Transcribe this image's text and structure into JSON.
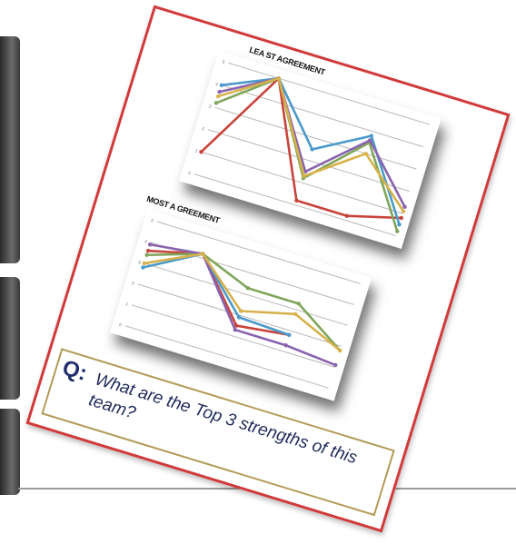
{
  "charts": [
    {
      "title": "LEA ST AGREEMENT",
      "series_colors": [
        "#c8433b",
        "#4a9acb",
        "#7fa65a",
        "#8a63b0",
        "#d7b24a"
      ],
      "series": [
        {
          "name": "",
          "values": [
            1,
            5,
            0.2,
            0.2,
            0.8
          ]
        },
        {
          "name": "",
          "values": [
            4,
            5,
            2.5,
            3.8,
            0.5
          ]
        },
        {
          "name": "",
          "values": [
            3.2,
            5,
            1.2,
            3.5,
            0.2
          ]
        },
        {
          "name": "",
          "values": [
            3.7,
            5,
            1.5,
            3.6,
            1.3
          ]
        },
        {
          "name": "",
          "values": [
            3.5,
            5,
            1.3,
            3.0,
            1.1
          ]
        }
      ]
    },
    {
      "title": "MOST A GREEMENT",
      "series_colors": [
        "#c8433b",
        "#4a9acb",
        "#7fa65a",
        "#8a63b0",
        "#d7b24a"
      ],
      "series": [
        {
          "name": "",
          "values": [
            3.6,
            4.2,
            1.5,
            1.8,
            null
          ]
        },
        {
          "name": "",
          "values": [
            2.8,
            4.2,
            1.9,
            1.8,
            null
          ]
        },
        {
          "name": "",
          "values": [
            3.4,
            4.2,
            3.3,
            3.3,
            1.8
          ]
        },
        {
          "name": "",
          "values": [
            3.9,
            4.2,
            1.3,
            1.3,
            1.1
          ]
        },
        {
          "name": "",
          "values": [
            3.0,
            4.2,
            2.2,
            2.8,
            1.8
          ]
        }
      ]
    }
  ],
  "question": {
    "label": "Q:",
    "text": "What are the Top 3 strengths of this team?"
  }
}
